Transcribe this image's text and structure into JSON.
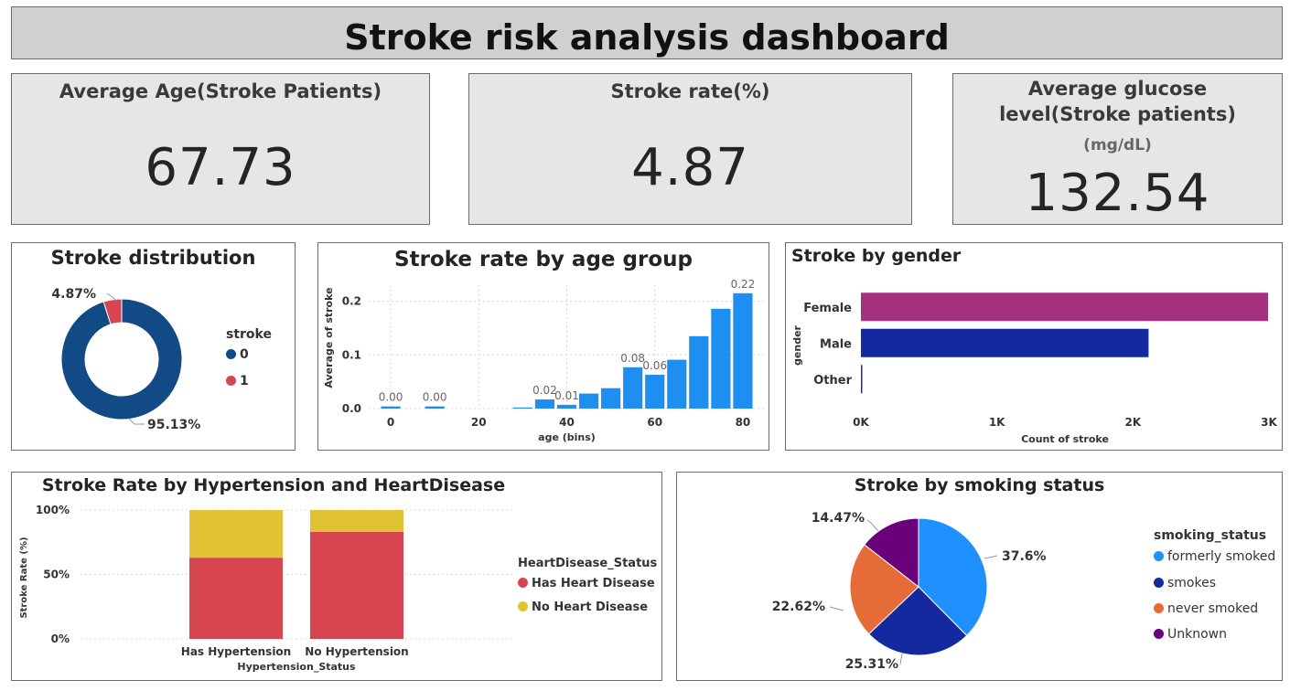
{
  "header": {
    "title": "Stroke risk analysis dashboard"
  },
  "kpis": {
    "avg_age": {
      "title": "Average Age(Stroke Patients)",
      "value": "67.73"
    },
    "stroke_rate": {
      "title": "Stroke rate(%)",
      "value": "4.87"
    },
    "avg_glucose": {
      "title": "Average glucose level(Stroke patients)",
      "unit": "(mg/dL)",
      "value": "132.54"
    }
  },
  "colors": {
    "blue_dark": "#114a85",
    "red": "#d64550",
    "bar_blue": "#1e8ff0",
    "magenta": "#a3317e",
    "navy": "#1428a0",
    "yellow": "#e1c233",
    "light_blue": "#1e90ff",
    "orange": "#e66c37",
    "purple": "#6b007b"
  },
  "chart_data": [
    {
      "type": "pie",
      "title": "Stroke distribution",
      "legend_title": "stroke",
      "legend_position": "right",
      "donut": true,
      "slices": [
        {
          "name": "0",
          "value": 95.13,
          "label": "95.13%"
        },
        {
          "name": "1",
          "value": 4.87,
          "label": "4.87%"
        }
      ]
    },
    {
      "type": "bar",
      "title": "Stroke rate by age group",
      "xlabel": "age (bins)",
      "ylabel": "Average of stroke",
      "x_ticks": [
        "0",
        "20",
        "40",
        "60",
        "80"
      ],
      "y_ticks": [
        "0.0",
        "0.1",
        "0.2"
      ],
      "xlim": [
        -5,
        85
      ],
      "ylim": [
        0,
        0.23
      ],
      "grid": true,
      "bins": [
        0,
        10,
        30,
        35,
        40,
        45,
        50,
        55,
        60,
        65,
        70,
        75,
        80
      ],
      "values": [
        0.004,
        0.004,
        0.002,
        0.017,
        0.007,
        0.028,
        0.038,
        0.077,
        0.063,
        0.091,
        0.135,
        0.186,
        0.215
      ],
      "data_labels": [
        "0.00",
        "0.00",
        "",
        "0.02",
        "0.01",
        "",
        "",
        "0.08",
        "0.06",
        "",
        "",
        "",
        "0.22"
      ]
    },
    {
      "type": "bar",
      "orientation": "horizontal",
      "title": "Stroke by gender",
      "xlabel": "Count of stroke",
      "ylabel": "gender",
      "categories": [
        "Female",
        "Male",
        "Other"
      ],
      "values": [
        2994,
        2115,
        1
      ],
      "x_ticks": [
        "0K",
        "1K",
        "2K",
        "3K"
      ],
      "xlim": [
        0,
        3000
      ]
    },
    {
      "type": "bar",
      "stacked": true,
      "title": "Stroke Rate by Hypertension and HeartDisease",
      "xlabel": "Hypertension_Status",
      "ylabel": "Stroke Rate (%)",
      "categories": [
        "Has Hypertension",
        "No Hypertension"
      ],
      "y_ticks": [
        "0%",
        "50%",
        "100%"
      ],
      "ylim": [
        0,
        100
      ],
      "legend_title": "HeartDisease_Status",
      "legend_position": "right",
      "series": [
        {
          "name": "Has Heart Disease",
          "values": [
            63,
            83
          ]
        },
        {
          "name": "No Heart Disease",
          "values": [
            37,
            17
          ]
        }
      ]
    },
    {
      "type": "pie",
      "title": "Stroke by smoking status",
      "legend_title": "smoking_status",
      "legend_position": "right",
      "slices": [
        {
          "name": "formerly smoked",
          "value": 37.6,
          "label": "37.6%"
        },
        {
          "name": "smokes",
          "value": 25.31,
          "label": "25.31%"
        },
        {
          "name": "never smoked",
          "value": 22.62,
          "label": "22.62%"
        },
        {
          "name": "Unknown",
          "value": 14.47,
          "label": "14.47%"
        }
      ]
    }
  ]
}
